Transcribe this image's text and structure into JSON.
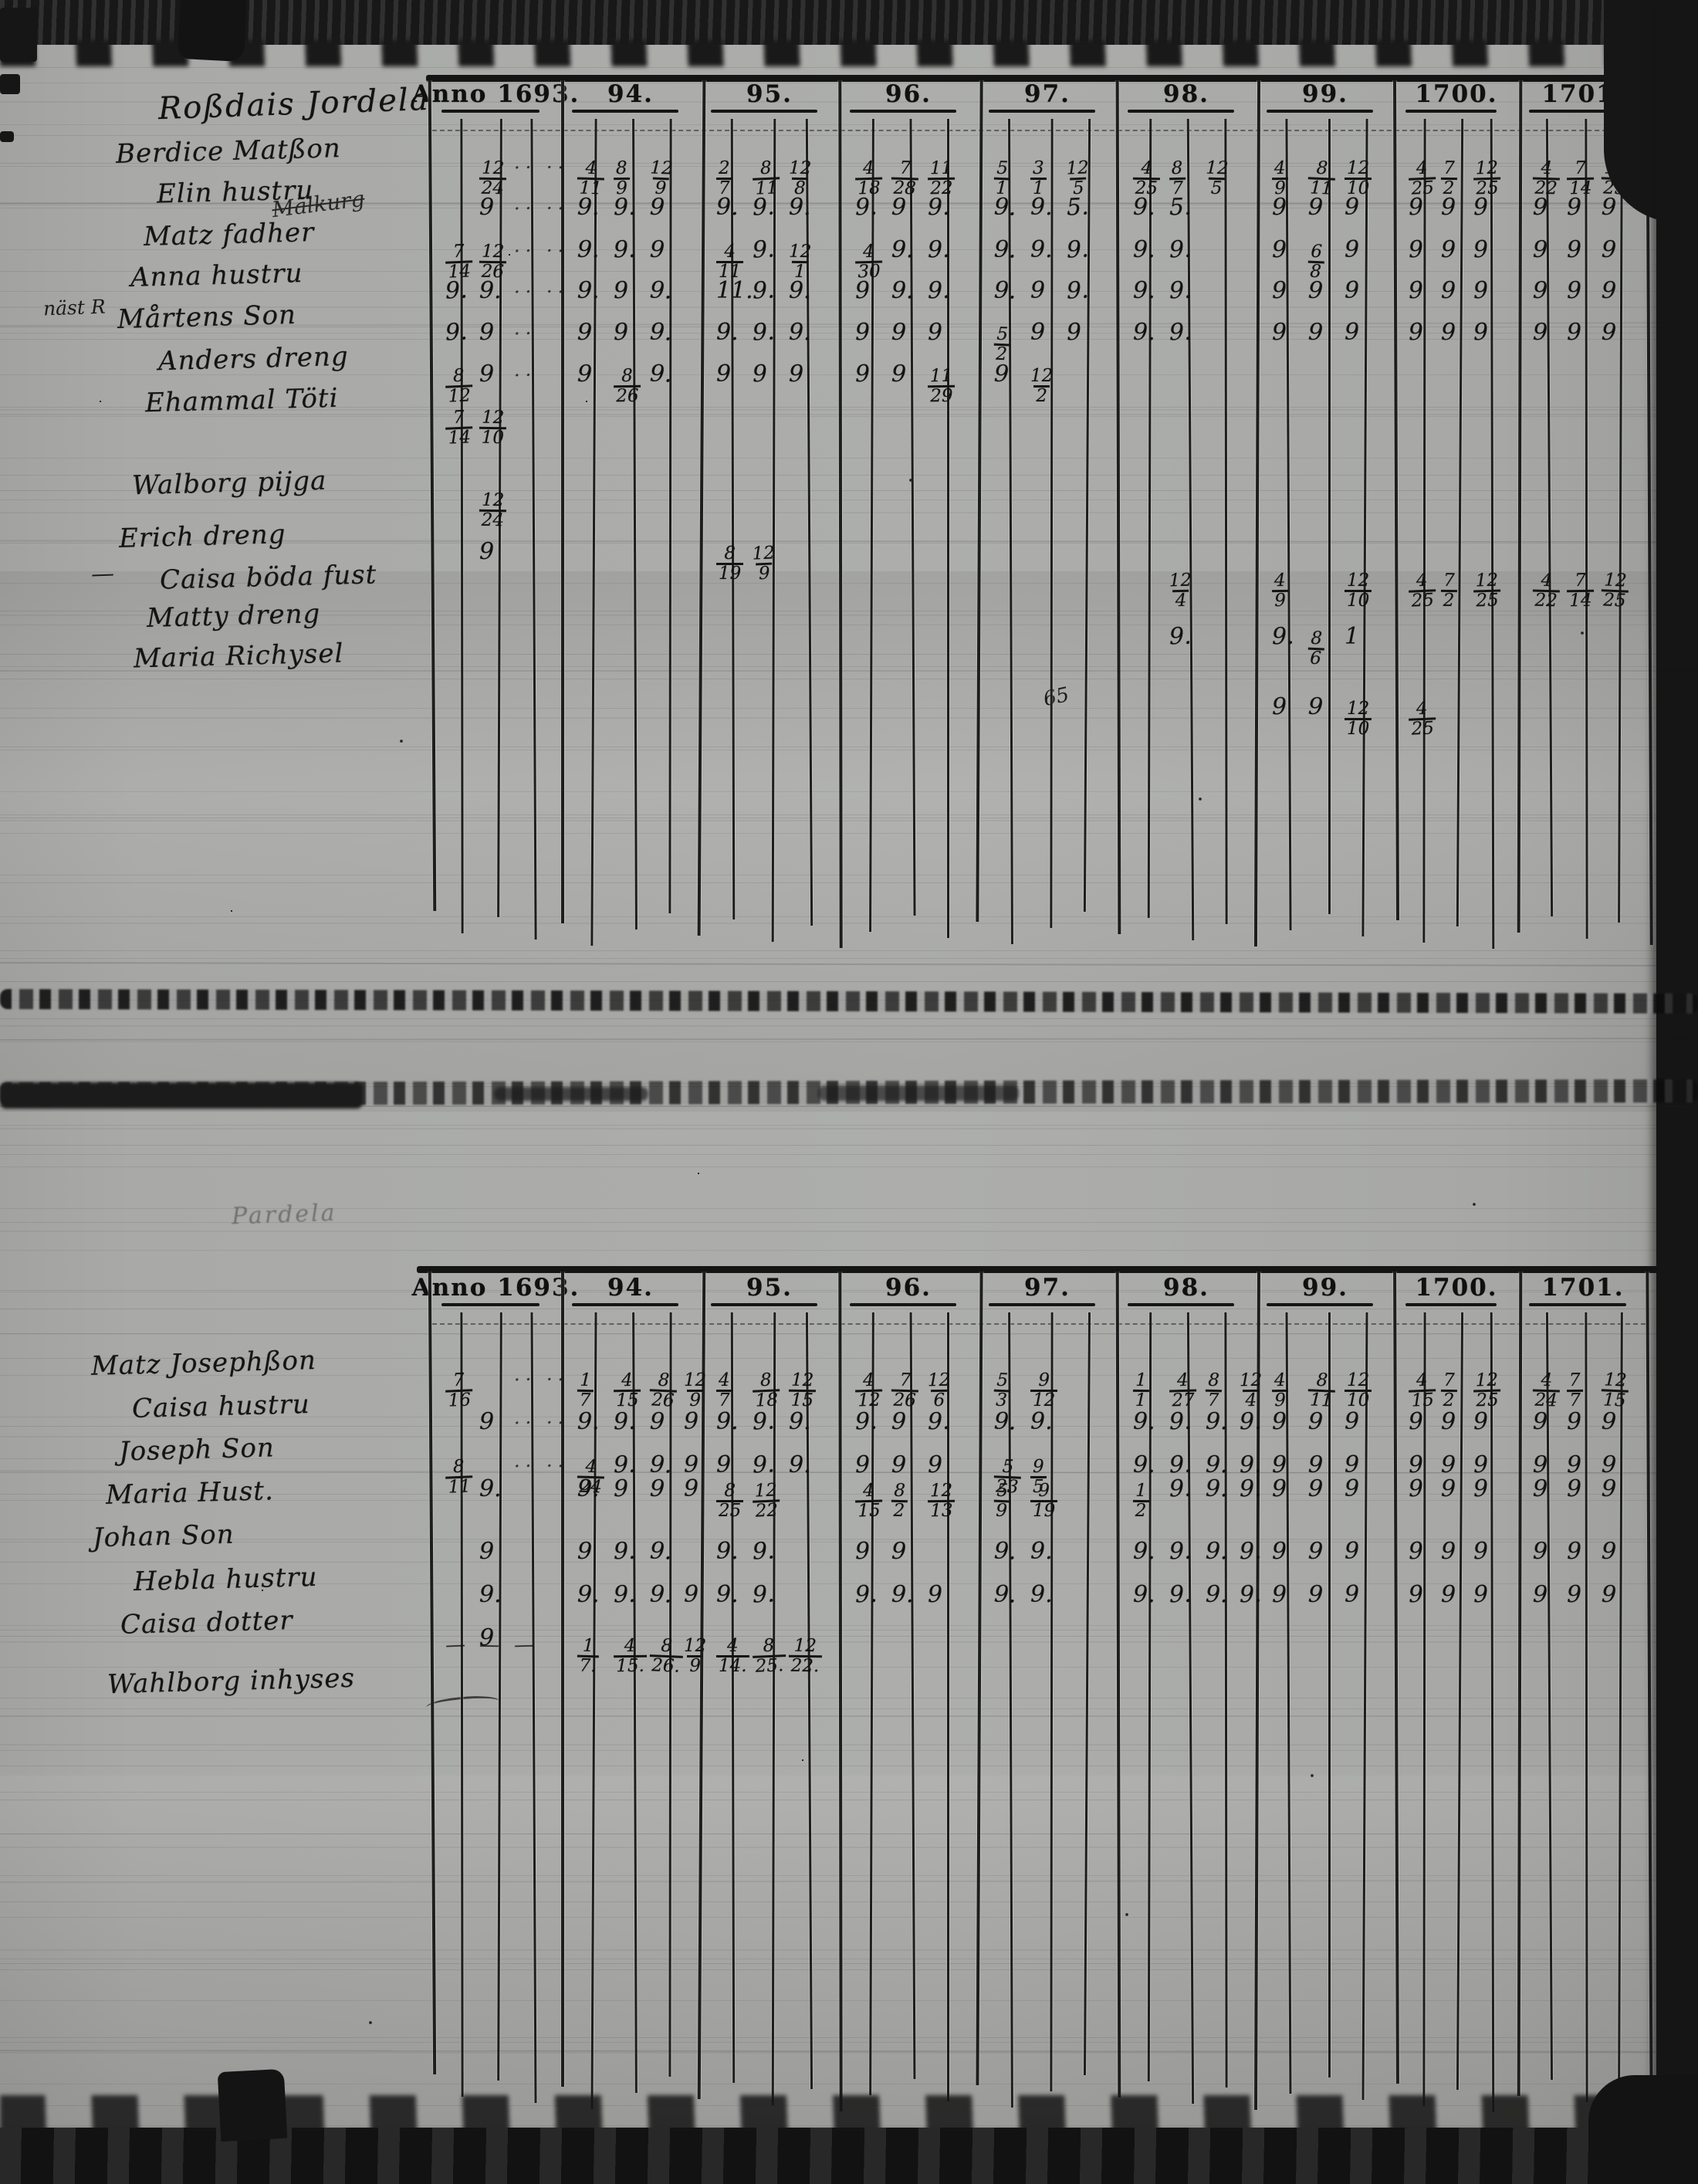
{
  "header_years": [
    "Anno 1693.",
    "94.",
    "95.",
    "96.",
    "97.",
    "98.",
    "99.",
    "1700.",
    "1701."
  ],
  "top_table": {
    "title": "Roßdais Jordela",
    "margin_note": "näst R",
    "crossed_note": "Mälkurg",
    "margin_dash": "—",
    "stray_mark": "65",
    "rows": [
      {
        "name": "Berdice Matßon",
        "cells": [
          [
            "",
            "12/24",
            "··",
            "··"
          ],
          [
            "4/11",
            "8/9",
            "12/9"
          ],
          [
            "2/7",
            "8/11",
            "12/8"
          ],
          [
            "4/18",
            "7/28",
            "11/22"
          ],
          [
            "5/1",
            "3/1",
            "12/5"
          ],
          [
            "4/25",
            "8/7",
            "12/5"
          ],
          [
            "4/9",
            "8/11",
            "12/10"
          ],
          [
            "4/25",
            "7/2",
            "12/25"
          ],
          [
            "4/22",
            "7/14",
            "12/25"
          ]
        ]
      },
      {
        "name": "Elin hustru",
        "cells": [
          [
            "",
            "9",
            "··",
            "··"
          ],
          [
            "9.",
            "9.",
            "9"
          ],
          [
            "9.",
            "9.",
            "9."
          ],
          [
            "9.",
            "9",
            "9."
          ],
          [
            "9.",
            "9.",
            "5."
          ],
          [
            "9.",
            "5."
          ],
          [
            "9",
            "9",
            "9"
          ],
          [
            "9",
            "9",
            "9"
          ],
          [
            "9",
            "9",
            "9"
          ]
        ]
      },
      {
        "name": "Matz fadher",
        "cells": [
          [
            "7/14",
            "12/26",
            "··",
            "··"
          ],
          [
            "9.",
            "9.",
            "9"
          ],
          [
            "4/11",
            "9.",
            "12/1"
          ],
          [
            "4/30",
            "9.",
            "9."
          ],
          [
            "9.",
            "9.",
            "9."
          ],
          [
            "9.",
            "9."
          ],
          [
            "9",
            "6/8",
            "9"
          ],
          [
            "9",
            "9",
            "9"
          ],
          [
            "9",
            "9",
            "9"
          ]
        ]
      },
      {
        "name": "Anna hustru",
        "cells": [
          [
            "9.",
            "9.",
            "··",
            "··"
          ],
          [
            "9.",
            "9",
            "9."
          ],
          [
            "11.",
            "9.",
            "9."
          ],
          [
            "9",
            "9.",
            "9."
          ],
          [
            "9.",
            "9",
            "9."
          ],
          [
            "9.",
            "9."
          ],
          [
            "9",
            "9",
            "9"
          ],
          [
            "9",
            "9",
            "9"
          ],
          [
            "9",
            "9",
            "9"
          ]
        ]
      },
      {
        "name": "Mårtens Son",
        "cells": [
          [
            "9.",
            "9",
            "··",
            ""
          ],
          [
            "9",
            "9",
            "9."
          ],
          [
            "9.",
            "9.",
            "9."
          ],
          [
            "9",
            "9",
            "9"
          ],
          [
            "5/2",
            "9",
            "9"
          ],
          [
            "9.",
            "9."
          ],
          [
            "9",
            "9",
            "9"
          ],
          [
            "9",
            "9",
            "9"
          ],
          [
            "9",
            "9",
            "9"
          ]
        ]
      },
      {
        "name": "Anders dreng",
        "cells": [
          [
            "8/12",
            "9",
            "··",
            ""
          ],
          [
            "9",
            "8/26",
            "9."
          ],
          [
            "9",
            "9",
            "9"
          ],
          [
            "9",
            "9",
            "11/29"
          ],
          [
            "9",
            "12/2"
          ],
          [],
          [],
          [],
          []
        ]
      },
      {
        "name": "Ehammal Töti",
        "cells": [
          [
            "7/14",
            "12/10",
            "",
            ""
          ],
          [],
          [],
          [],
          [],
          [],
          [],
          [],
          []
        ]
      },
      {
        "name": "Walborg pijga",
        "cells": [
          [
            "",
            "12/24",
            "",
            ""
          ],
          [],
          [],
          [],
          [],
          [],
          [],
          [],
          []
        ]
      },
      {
        "name": "Erich dreng",
        "cells": [
          [
            "",
            "9",
            "",
            ""
          ],
          [],
          [
            "8/19",
            "12/9"
          ],
          [],
          [],
          [],
          [],
          [],
          []
        ]
      },
      {
        "name": "Caisa böda fust",
        "cells": [
          [],
          [],
          [],
          [],
          [],
          [],
          [],
          [],
          []
        ]
      },
      {
        "name": "Matty dreng",
        "cells": [
          [],
          [],
          [],
          [],
          [],
          [
            "",
            "12/4"
          ],
          [
            "4/9",
            "",
            "12/10"
          ],
          [
            "4/25",
            "7/2",
            "12/25"
          ],
          [
            "4/22",
            "7/14",
            "12/25"
          ]
        ]
      },
      {
        "name": "Maria Richysel",
        "cells": [
          [],
          [],
          [],
          [],
          [],
          [
            "",
            "9."
          ],
          [
            "9.",
            "8/6",
            "1"
          ],
          [],
          []
        ]
      },
      {
        "name": "",
        "cells": [
          [],
          [],
          [],
          [],
          [],
          [],
          [
            "9",
            "9",
            "12/10"
          ],
          [
            "4/25"
          ],
          []
        ]
      }
    ]
  },
  "bottom_table": {
    "pencil_label": "Pardela",
    "rows": [
      {
        "name": "Matz Josephßon",
        "cells": [
          [
            "7/16",
            "",
            "··",
            "··"
          ],
          [
            "1/7",
            "4/15",
            "8/26",
            "12/9"
          ],
          [
            "4/7",
            "8/18",
            "12/15"
          ],
          [
            "4/12",
            "7/26",
            "12/6"
          ],
          [
            "5/3",
            "9/12"
          ],
          [
            "1/1",
            "4/27",
            "8/7",
            "12/4"
          ],
          [
            "4/9",
            "8/11",
            "12/10"
          ],
          [
            "4/15",
            "7/2",
            "12/25"
          ],
          [
            "4/24",
            "7/7",
            "12/15"
          ]
        ]
      },
      {
        "name": "Caisa hustru",
        "cells": [
          [
            "",
            "9",
            "··",
            "··"
          ],
          [
            "9.",
            "9.",
            "9",
            "9"
          ],
          [
            "9.",
            "9.",
            "9."
          ],
          [
            "9.",
            "9",
            "9."
          ],
          [
            "9.",
            "9."
          ],
          [
            "9.",
            "9.",
            "9.",
            "9."
          ],
          [
            "9",
            "9",
            "9"
          ],
          [
            "9",
            "9",
            "9"
          ],
          [
            "9",
            "9",
            "9"
          ]
        ]
      },
      {
        "name": "Joseph Son",
        "cells": [
          [
            "8/11",
            "",
            "··",
            "··"
          ],
          [
            "4/24",
            "9.",
            "9.",
            "9"
          ],
          [
            "9",
            "9.",
            "9."
          ],
          [
            "9",
            "9",
            "9"
          ],
          [
            "5/23",
            "9/5"
          ],
          [
            "9.",
            "9.",
            "9.",
            "9."
          ],
          [
            "9",
            "9",
            "9"
          ],
          [
            "9",
            "9",
            "9"
          ],
          [
            "9",
            "9",
            "9"
          ]
        ]
      },
      {
        "name": "Maria Hust.",
        "cells": [
          [
            "",
            "9.",
            "",
            ""
          ],
          [
            "9.",
            "9",
            "9",
            "9"
          ],
          [
            "8/25",
            "12/22"
          ],
          [
            "4/15",
            "8/2",
            "12/13"
          ],
          [
            "5/9",
            "9/19"
          ],
          [
            "1/2",
            "9.",
            "9.",
            "9."
          ],
          [
            "9",
            "9",
            "9"
          ],
          [
            "9",
            "9",
            "9"
          ],
          [
            "9",
            "9",
            "9"
          ]
        ]
      },
      {
        "name": "Johan Son",
        "cells": [
          [
            "",
            "9",
            "",
            ""
          ],
          [
            "9",
            "9.",
            "9."
          ],
          [
            "9.",
            "9."
          ],
          [
            "9",
            "9"
          ],
          [
            "9.",
            "9."
          ],
          [
            "9.",
            "9.",
            "9.",
            "9."
          ],
          [
            "9",
            "9",
            "9"
          ],
          [
            "9",
            "9",
            "9"
          ],
          [
            "9",
            "9",
            "9"
          ]
        ]
      },
      {
        "name": "Hebla hustru",
        "cells": [
          [
            "",
            "9.",
            "",
            ""
          ],
          [
            "9.",
            "9.",
            "9.",
            "9"
          ],
          [
            "9.",
            "9."
          ],
          [
            "9.",
            "9.",
            "9"
          ],
          [
            "9.",
            "9."
          ],
          [
            "9.",
            "9.",
            "9.",
            "9."
          ],
          [
            "9",
            "9",
            "9"
          ],
          [
            "9",
            "9",
            "9"
          ],
          [
            "9",
            "9",
            "9"
          ]
        ]
      },
      {
        "name": "Caisa dotter",
        "cells": [
          [
            "",
            "9",
            "",
            ""
          ],
          [],
          [],
          [],
          [],
          [],
          [],
          [],
          []
        ]
      },
      {
        "name": "Wahlborg inhyses",
        "cells": [
          [
            "-",
            "-",
            "-",
            ""
          ],
          [
            "1/7.",
            "4/15.",
            "8/26.",
            "12/9"
          ],
          [
            "4/14.",
            "8/25.",
            "12/22."
          ],
          [],
          [],
          [],
          [],
          [],
          []
        ]
      }
    ]
  }
}
